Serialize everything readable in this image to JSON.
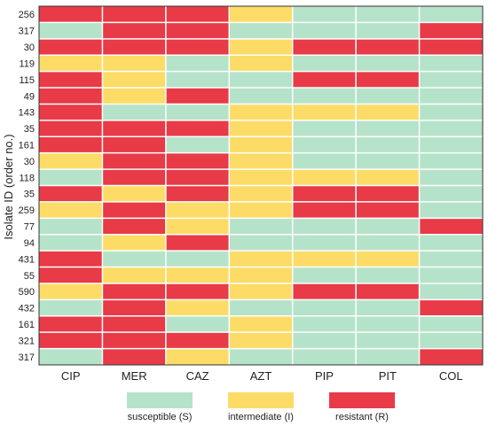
{
  "chart_data": {
    "type": "heatmap",
    "ylabel": "Isolate ID (order no.)",
    "x_categories": [
      "CIP",
      "MER",
      "CAZ",
      "AZT",
      "PIP",
      "PIT",
      "COL"
    ],
    "y_categories": [
      "256",
      "317",
      "30",
      "119",
      "115",
      "49",
      "143",
      "35",
      "161",
      "30",
      "118",
      "35",
      "259",
      "77",
      "94",
      "431",
      "55",
      "590",
      "432",
      "161",
      "321",
      "317"
    ],
    "values": [
      [
        "R",
        "R",
        "R",
        "I",
        "S",
        "S",
        "S"
      ],
      [
        "S",
        "R",
        "R",
        "S",
        "S",
        "S",
        "R"
      ],
      [
        "R",
        "R",
        "R",
        "I",
        "R",
        "R",
        "R"
      ],
      [
        "I",
        "I",
        "S",
        "I",
        "S",
        "S",
        "S"
      ],
      [
        "R",
        "I",
        "S",
        "S",
        "R",
        "R",
        "S"
      ],
      [
        "R",
        "I",
        "R",
        "S",
        "S",
        "S",
        "S"
      ],
      [
        "R",
        "S",
        "S",
        "I",
        "I",
        "I",
        "S"
      ],
      [
        "R",
        "R",
        "R",
        "I",
        "S",
        "S",
        "S"
      ],
      [
        "R",
        "R",
        "S",
        "I",
        "S",
        "S",
        "S"
      ],
      [
        "I",
        "R",
        "R",
        "I",
        "S",
        "S",
        "S"
      ],
      [
        "S",
        "R",
        "R",
        "I",
        "I",
        "I",
        "S"
      ],
      [
        "R",
        "I",
        "R",
        "I",
        "R",
        "R",
        "S"
      ],
      [
        "I",
        "R",
        "I",
        "I",
        "R",
        "R",
        "S"
      ],
      [
        "S",
        "R",
        "I",
        "S",
        "S",
        "S",
        "R"
      ],
      [
        "S",
        "I",
        "R",
        "S",
        "S",
        "S",
        "S"
      ],
      [
        "R",
        "S",
        "S",
        "I",
        "I",
        "I",
        "S"
      ],
      [
        "R",
        "I",
        "I",
        "I",
        "S",
        "S",
        "S"
      ],
      [
        "I",
        "R",
        "R",
        "I",
        "R",
        "R",
        "S"
      ],
      [
        "S",
        "R",
        "I",
        "S",
        "S",
        "S",
        "R"
      ],
      [
        "R",
        "R",
        "S",
        "I",
        "S",
        "S",
        "S"
      ],
      [
        "R",
        "R",
        "R",
        "I",
        "S",
        "S",
        "S"
      ],
      [
        "S",
        "R",
        "I",
        "S",
        "S",
        "S",
        "R"
      ]
    ],
    "legend": [
      {
        "key": "S",
        "label": "susceptible (S)",
        "color": "#b5e3c9"
      },
      {
        "key": "I",
        "label": "intermediate (I)",
        "color": "#fcdc67"
      },
      {
        "key": "R",
        "label": "resistant (R)",
        "color": "#e83a47"
      }
    ],
    "legend_placement": "bottom",
    "grid": true
  }
}
